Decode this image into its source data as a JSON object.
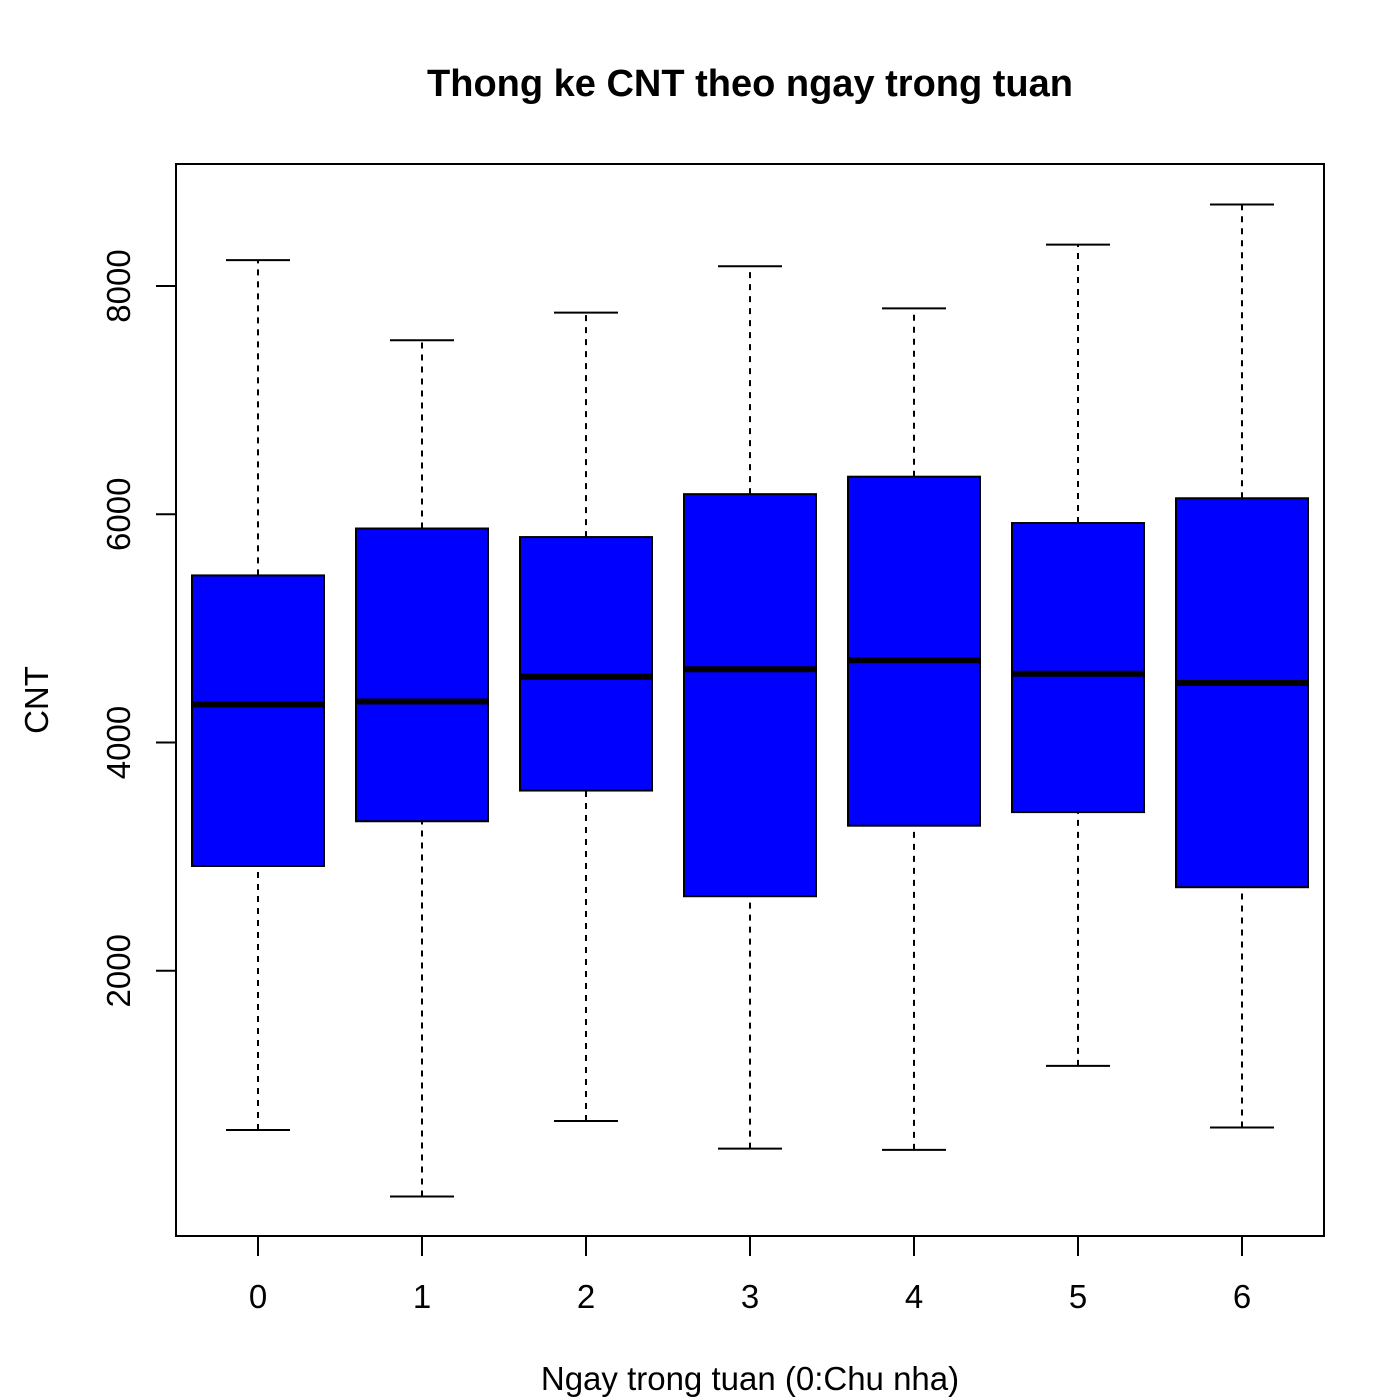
{
  "chart_data": {
    "type": "boxplot",
    "title": "Thong ke CNT theo ngay trong tuan",
    "xlabel": "Ngay trong tuan (0:Chu nha)",
    "ylabel": "CNT",
    "categories": [
      "0",
      "1",
      "2",
      "3",
      "4",
      "5",
      "6"
    ],
    "ylim": [
      22,
      8714
    ],
    "yticks": [
      2000,
      4000,
      6000,
      8000
    ],
    "ytick_labels": [
      "2000",
      "4000",
      "6000",
      "8000"
    ],
    "box_fill": "#0000ff",
    "boxes": [
      {
        "category": "0",
        "whisker_low": 605,
        "q1": 2918,
        "median": 4334,
        "q3": 5464,
        "whisker_high": 8227
      },
      {
        "category": "1",
        "whisker_low": 22,
        "q1": 3310,
        "median": 4359,
        "q3": 5875,
        "whisker_high": 7525
      },
      {
        "category": "2",
        "whisker_low": 683,
        "q1": 3579,
        "median": 4576,
        "q3": 5800,
        "whisker_high": 7767
      },
      {
        "category": "3",
        "whisker_low": 441,
        "q1": 2653,
        "median": 4642,
        "q3": 6176,
        "whisker_high": 8173
      },
      {
        "category": "4",
        "whisker_low": 431,
        "q1": 3271,
        "median": 4721,
        "q3": 6329,
        "whisker_high": 7804
      },
      {
        "category": "5",
        "whisker_low": 1167,
        "q1": 3390,
        "median": 4602,
        "q3": 5923,
        "whisker_high": 8362
      },
      {
        "category": "6",
        "whisker_low": 627,
        "q1": 2732,
        "median": 4521,
        "q3": 6140,
        "whisker_high": 8714
      }
    ]
  }
}
